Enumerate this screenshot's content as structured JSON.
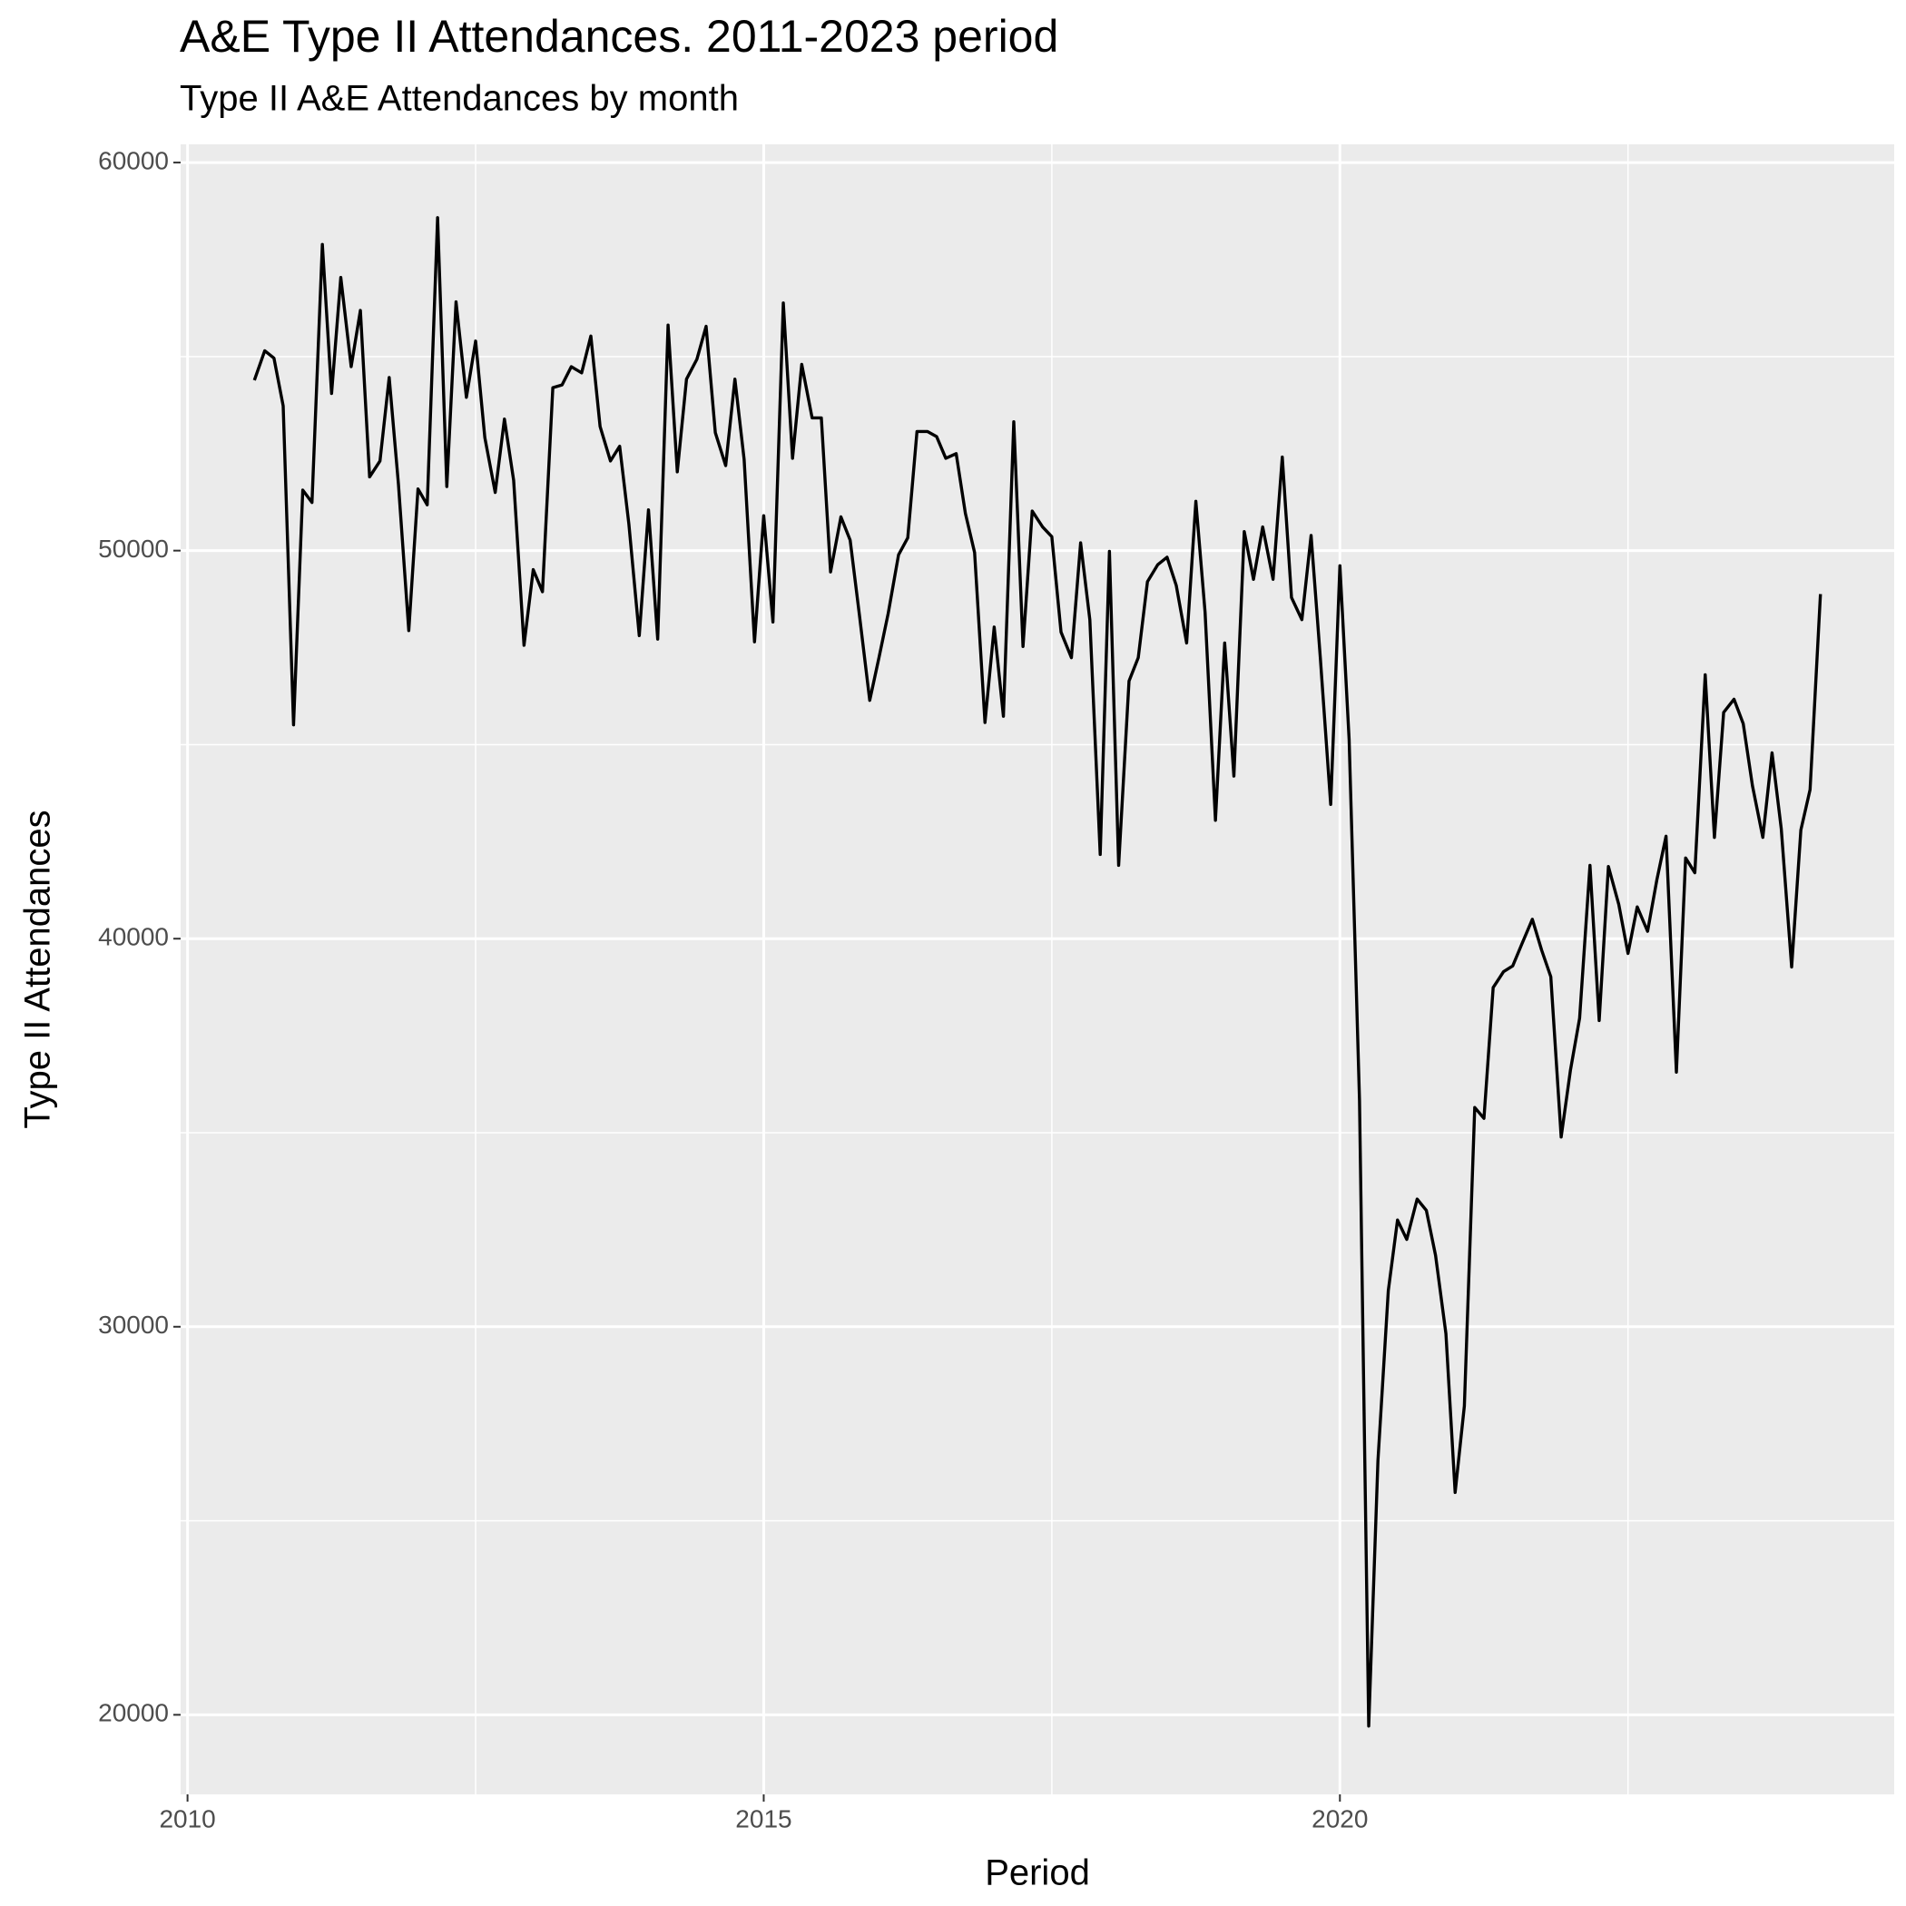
{
  "chart_data": {
    "type": "line",
    "title": "A&E Type II Attendances. 2011-2023 period",
    "subtitle": "Type II A&E Attendances by month",
    "x_label": "Period",
    "y_label": "Type II Attendances",
    "xlim": [
      2009.94,
      2024.81
    ],
    "ylim": [
      17950,
      60470
    ],
    "xticks": [
      2010,
      2015,
      2020
    ],
    "yticks": [
      20000,
      30000,
      40000,
      50000,
      60000
    ],
    "grid": true,
    "x": [
      2010.58,
      2010.67,
      2010.75,
      2010.83,
      2010.92,
      2011.0,
      2011.08,
      2011.17,
      2011.25,
      2011.33,
      2011.42,
      2011.5,
      2011.58,
      2011.67,
      2011.75,
      2011.83,
      2011.92,
      2012.0,
      2012.08,
      2012.17,
      2012.25,
      2012.33,
      2012.42,
      2012.5,
      2012.58,
      2012.67,
      2012.75,
      2012.83,
      2012.92,
      2013.0,
      2013.08,
      2013.17,
      2013.25,
      2013.33,
      2013.42,
      2013.5,
      2013.58,
      2013.67,
      2013.75,
      2013.83,
      2013.92,
      2014.0,
      2014.08,
      2014.17,
      2014.25,
      2014.33,
      2014.42,
      2014.5,
      2014.58,
      2014.67,
      2014.75,
      2014.83,
      2014.92,
      2015.0,
      2015.08,
      2015.17,
      2015.25,
      2015.33,
      2015.42,
      2015.5,
      2015.58,
      2015.67,
      2015.75,
      2015.83,
      2015.92,
      2016.0,
      2016.08,
      2016.17,
      2016.25,
      2016.33,
      2016.42,
      2016.5,
      2016.58,
      2016.67,
      2016.75,
      2016.83,
      2016.92,
      2017.0,
      2017.08,
      2017.17,
      2017.25,
      2017.33,
      2017.42,
      2017.5,
      2017.58,
      2017.67,
      2017.75,
      2017.83,
      2017.92,
      2018.0,
      2018.08,
      2018.17,
      2018.25,
      2018.33,
      2018.42,
      2018.5,
      2018.58,
      2018.67,
      2018.75,
      2018.83,
      2018.92,
      2019.0,
      2019.08,
      2019.17,
      2019.25,
      2019.33,
      2019.42,
      2019.5,
      2019.58,
      2019.67,
      2019.75,
      2019.83,
      2019.92,
      2020.0,
      2020.08,
      2020.17,
      2020.25,
      2020.33,
      2020.42,
      2020.5,
      2020.58,
      2020.67,
      2020.75,
      2020.83,
      2020.92,
      2021.0,
      2021.08,
      2021.17,
      2021.25,
      2021.33,
      2021.42,
      2021.5,
      2021.58,
      2021.67,
      2021.75,
      2021.83,
      2021.92,
      2022.0,
      2022.08,
      2022.17,
      2022.25,
      2022.33,
      2022.42,
      2022.5,
      2022.58,
      2022.67,
      2022.75,
      2022.83,
      2022.92,
      2023.0,
      2023.08,
      2023.17,
      2023.25,
      2023.33,
      2023.42,
      2023.5,
      2023.58,
      2023.67,
      2023.75,
      2023.83,
      2023.92,
      2024.0,
      2024.08,
      2024.17
    ],
    "series": [
      {
        "color": "#000000",
        "values": [
          54390,
          55150,
          54960,
          53730,
          45510,
          51560,
          51240,
          57890,
          54050,
          57040,
          54740,
          56190,
          51900,
          52310,
          54460,
          51720,
          47940,
          51590,
          51180,
          58580,
          51650,
          56410,
          53950,
          55400,
          52910,
          51500,
          53390,
          51810,
          47560,
          49510,
          48940,
          54200,
          54270,
          54740,
          54580,
          55530,
          53200,
          52310,
          52690,
          50680,
          47810,
          51050,
          47720,
          55810,
          52030,
          54420,
          54930,
          55780,
          53040,
          52190,
          54420,
          52350,
          47650,
          50900,
          48160,
          56380,
          52380,
          54800,
          53420,
          53420,
          49450,
          50870,
          50270,
          48350,
          46140,
          47240,
          48380,
          49890,
          50330,
          53070,
          53070,
          52940,
          52380,
          52500,
          50960,
          49950,
          45570,
          48030,
          45730,
          53320,
          47530,
          51020,
          50610,
          50360,
          47900,
          47240,
          50200,
          48220,
          42170,
          49980,
          41890,
          46640,
          47240,
          49200,
          49640,
          49830,
          49100,
          47620,
          51270,
          48410,
          43050,
          47620,
          44190,
          50490,
          49260,
          50610,
          49260,
          52410,
          48790,
          48220,
          50390,
          47240,
          43460,
          49610,
          45130,
          35840,
          19710,
          26550,
          30930,
          32750,
          32250,
          33290,
          33000,
          31840,
          29820,
          25730,
          27960,
          35650,
          35370,
          38740,
          39150,
          39300,
          39870,
          40500,
          39710,
          39020,
          34890,
          36600,
          37950,
          41890,
          37890,
          41860,
          40880,
          39620,
          40820,
          40190,
          41510,
          42640,
          36560,
          42080,
          41700,
          46800,
          42610,
          45830,
          46170,
          45540,
          43940,
          42610,
          44790,
          42830,
          39270,
          42800,
          43840,
          48880
        ]
      }
    ]
  }
}
